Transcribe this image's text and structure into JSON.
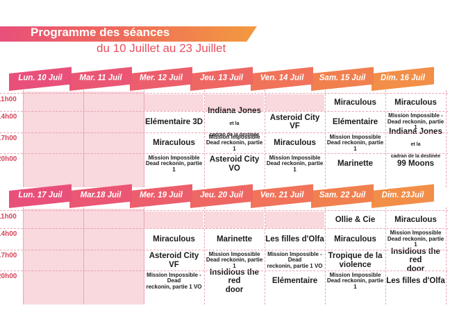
{
  "header": {
    "title": "Programme des séances",
    "subtitle": "du 10 Juillet au 23 Juillet"
  },
  "colors": {
    "pink": "#e8507a",
    "orange": "#f39a3f",
    "cell_bg": "#f9d8de"
  },
  "times": [
    "11h00",
    "14h00",
    "17h00",
    "20h00"
  ],
  "weeks": [
    {
      "days": [
        "Lun. 10 Juil",
        "Mar. 11 Juil",
        "Mer. 12 Juil",
        "Jeu. 13 Juil",
        "Ven. 14 Juil",
        "Sam. 15 Juil",
        "Dim. 16 Juil"
      ],
      "cells": [
        [
          "",
          "",
          "",
          "",
          "",
          "Miraculous",
          "Miraculous"
        ],
        [
          "",
          "",
          "Elémentaire 3D",
          "Indiana Jones|et la cadran de la destinée",
          "Asteroid City VF",
          "Elémentaire",
          "Mission Impossible -|Dead reckonin, partie 1"
        ],
        [
          "",
          "",
          "Miraculous",
          "Mission Impossible|Dead reckonin, partie 1",
          "Miraculous",
          "Mission Impossible|Dead reckonin, partie 1",
          "Indiana Jones|et la cadran de la destinée"
        ],
        [
          "",
          "",
          "Mission Impossible|Dead reckonin, partie 1",
          "Asteroid City VO",
          "Mission Impossible|Dead reckonin, partie 1",
          "Marinette",
          "99 Moons"
        ]
      ]
    },
    {
      "days": [
        "Lun. 17 Juil",
        "Mar.18 Juil",
        "Mer. 19 Juil",
        "Jeu. 20 Juil",
        "Ven. 21 Juil",
        "Sam. 22 Juil",
        "Dim. 23Juil"
      ],
      "cells": [
        [
          "",
          "",
          "",
          "",
          "",
          "Ollie & Cie",
          "Miraculous"
        ],
        [
          "",
          "",
          "Miraculous",
          "Marinette",
          "Les filles d'Olfa",
          "Miraculous",
          "Mission Impossible|Dead reckonin, partie 1"
        ],
        [
          "",
          "",
          "Asteroid City VF",
          "Mission Impossible|Dead reckonin, partie 1",
          "Mission Impossible - Dead|reckonin, partie 1 VO",
          "Tropique de la|violence",
          "Insidious the red|door"
        ],
        [
          "",
          "",
          "Mission Impossible - Dead|reckonin, partie 1 VO",
          "Insidious the red|door",
          "Elémentaire",
          "Mission Impossible|Dead reckonin, partie 1",
          "Les filles d'Olfa"
        ]
      ]
    }
  ]
}
